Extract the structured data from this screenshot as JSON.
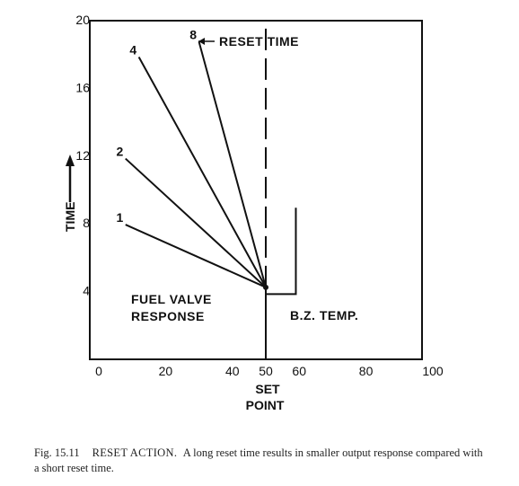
{
  "chart_data": {
    "type": "line",
    "xlabel": [
      "SET",
      "POINT"
    ],
    "ylabel": "TIME",
    "xlim": [
      0,
      100
    ],
    "ylim": [
      0,
      20
    ],
    "x_ticks": [
      0,
      20,
      40,
      50,
      60,
      80,
      100
    ],
    "y_ticks": [
      4,
      8,
      12,
      16,
      20
    ],
    "grid": false,
    "series": [
      {
        "name": "1",
        "x": [
          50,
          8
        ],
        "y": [
          4.2,
          7.9
        ]
      },
      {
        "name": "2",
        "x": [
          50,
          8
        ],
        "y": [
          4.2,
          11.8
        ]
      },
      {
        "name": "4",
        "x": [
          50,
          12
        ],
        "y": [
          4.2,
          17.8
        ]
      },
      {
        "name": "8",
        "x": [
          50,
          30
        ],
        "y": [
          4.2,
          18.7
        ]
      }
    ],
    "fuel_valve_response_line": {
      "x": [
        50,
        50
      ],
      "y": [
        0,
        4.2
      ]
    },
    "bz_temp_line": {
      "x": [
        50,
        50,
        59,
        59
      ],
      "y": [
        0,
        3.8,
        3.8,
        8.9
      ]
    },
    "set_point_dashed_line": {
      "x": [
        50,
        50
      ],
      "y": [
        4.2,
        20
      ]
    },
    "annotations": {
      "reset_time": "RESET TIME",
      "fuel_valve_response": [
        "FUEL VALVE",
        "RESPONSE"
      ],
      "bz_temp": "B.Z. TEMP."
    }
  },
  "caption": {
    "fig_no": "Fig. 15.11",
    "title": "RESET ACTION.",
    "text": "A long reset time results in smaller output response compared with a short reset time."
  }
}
